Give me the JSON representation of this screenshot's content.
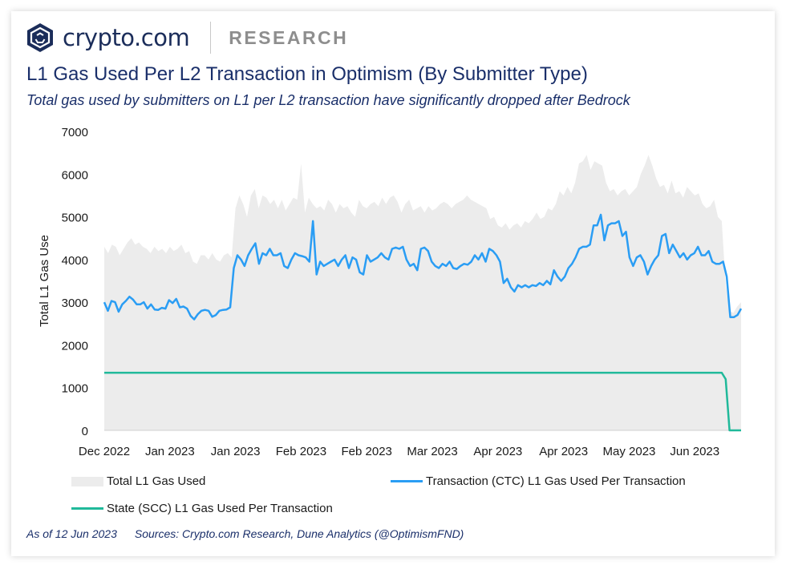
{
  "header": {
    "brand": "crypto.com",
    "section": "RESEARCH"
  },
  "title": "L1 Gas Used Per L2 Transaction in Optimism (By Submitter Type)",
  "subtitle": "Total gas used by submitters on L1 per L2 transaction have significantly dropped after Bedrock",
  "footer": {
    "asof": "As of 12 Jun 2023",
    "sources": "Sources: Crypto.com Research, Dune Analytics (@OptimismFND)"
  },
  "colors": {
    "brand": "#1b2d5a",
    "area": "#ececec",
    "ctc": "#2a9df4",
    "scc": "#20b99a",
    "text": "#1a2f6a"
  },
  "chart_data": {
    "type": "line",
    "ylabel": "Total L1 Gas Use",
    "ylim": [
      0,
      7000
    ],
    "y_ticks": [
      0,
      1000,
      2000,
      3000,
      4000,
      5000,
      6000,
      7000
    ],
    "x_tick_labels": [
      "Dec 2022",
      "Jan 2023",
      "Jan 2023",
      "Feb 2023",
      "Feb 2023",
      "Mar 2023",
      "Apr 2023",
      "Apr 2023",
      "May 2023",
      "Jun 2023"
    ],
    "x_tick_days": [
      0,
      17,
      34,
      51,
      68,
      85,
      102,
      119,
      136,
      153
    ],
    "x_range_days": [
      0,
      165
    ],
    "legend_position": "bottom",
    "series": [
      {
        "name": "Total L1 Gas Used",
        "kind": "area",
        "color": "#ececec",
        "values": [
          4300,
          4150,
          4350,
          4300,
          4100,
          4250,
          4400,
          4500,
          4350,
          4400,
          4300,
          4250,
          4150,
          4300,
          4200,
          4250,
          4150,
          4300,
          4200,
          4250,
          4350,
          4150,
          4200,
          3950,
          3900,
          4100,
          4100,
          4000,
          4150,
          4000,
          3950,
          4100,
          4150,
          4050,
          5200,
          5500,
          5300,
          5000,
          5500,
          5650,
          5200,
          5500,
          5450,
          5300,
          5400,
          5200,
          5400,
          5150,
          5300,
          5450,
          5400,
          6250,
          5100,
          5450,
          5300,
          5200,
          5250,
          5150,
          5400,
          5300,
          5100,
          5300,
          5200,
          5250,
          5100,
          5000,
          5400,
          5250,
          5200,
          5300,
          5350,
          5250,
          5450,
          5300,
          5450,
          5500,
          5350,
          5100,
          5300,
          5400,
          5150,
          5200,
          5250,
          5100,
          5250,
          5150,
          5200,
          5300,
          5350,
          5300,
          5200,
          5300,
          5350,
          5400,
          5500,
          5400,
          5350,
          5300,
          5250,
          5200,
          4950,
          5000,
          4800,
          4750,
          4850,
          4700,
          4800,
          4850,
          4750,
          4900,
          4850,
          4950,
          5100,
          4950,
          5000,
          5200,
          5150,
          5300,
          5600,
          5500,
          5700,
          5550,
          5800,
          6250,
          6300,
          6450,
          6100,
          6300,
          6250,
          6200,
          5800,
          5600,
          5650,
          5500,
          5600,
          5650,
          5500,
          5600,
          5700,
          6000,
          6200,
          6450,
          6200,
          5900,
          5700,
          5750,
          5550,
          5850,
          5550,
          5600,
          5450,
          5700,
          5600,
          5500,
          5550,
          5300,
          5200,
          5250,
          5400,
          5000,
          4900,
          3400,
          2800,
          2750,
          2900,
          3000
        ]
      },
      {
        "name": "Transaction  (CTC) L1 Gas Used Per Transaction",
        "kind": "line",
        "color": "#2a9df4",
        "values": [
          3000,
          2800,
          3030,
          3000,
          2780,
          2950,
          3030,
          3130,
          3060,
          2950,
          2950,
          3000,
          2850,
          2950,
          2830,
          2820,
          2870,
          2850,
          3050,
          2980,
          3080,
          2880,
          2900,
          2850,
          2680,
          2600,
          2720,
          2800,
          2820,
          2800,
          2660,
          2700,
          2800,
          2820,
          2830,
          2880,
          3800,
          4100,
          4000,
          3850,
          4100,
          4250,
          4380,
          3900,
          4150,
          4100,
          4250,
          4100,
          4100,
          4150,
          3850,
          3800,
          4000,
          4150,
          4100,
          4080,
          4050,
          3950,
          4900,
          3650,
          3950,
          3850,
          3900,
          3950,
          4000,
          3850,
          4000,
          4100,
          3800,
          4050,
          4000,
          3700,
          3650,
          4100,
          3950,
          4000,
          4050,
          4150,
          4050,
          4000,
          4250,
          4280,
          4250,
          4300,
          4000,
          3850,
          3900,
          3750,
          4250,
          4280,
          4200,
          3950,
          3850,
          3800,
          3900,
          3850,
          3950,
          3800,
          3780,
          3850,
          3900,
          3880,
          3950,
          4100,
          4000,
          4150,
          3950,
          4250,
          4200,
          4100,
          3950,
          3450,
          3550,
          3350,
          3250,
          3400,
          3350,
          3400,
          3350,
          3400,
          3380,
          3450,
          3400,
          3500,
          3420,
          3750,
          3600,
          3500,
          3600,
          3800,
          3900,
          4050,
          4250,
          4300,
          4300,
          4350,
          4800,
          4800,
          5050,
          4450,
          4800,
          4850,
          4850,
          4900,
          4550,
          4650,
          4050,
          3850,
          4050,
          4100,
          3950,
          3650,
          3850,
          4000,
          4100,
          4550,
          4600,
          4150,
          4350,
          4200,
          4050,
          4150,
          4000,
          4100,
          4150,
          4300,
          4100,
          4100,
          4200,
          3950,
          3900,
          3900,
          3950,
          3600,
          2650,
          2650,
          2700,
          2850
        ]
      },
      {
        "name": "State (SCC) L1 Gas Used Per Transaction",
        "kind": "line",
        "color": "#20b99a",
        "points": [
          [
            0,
            1350
          ],
          [
            160,
            1350
          ],
          [
            161,
            1200
          ],
          [
            162,
            0
          ],
          [
            165,
            0
          ]
        ]
      }
    ]
  }
}
